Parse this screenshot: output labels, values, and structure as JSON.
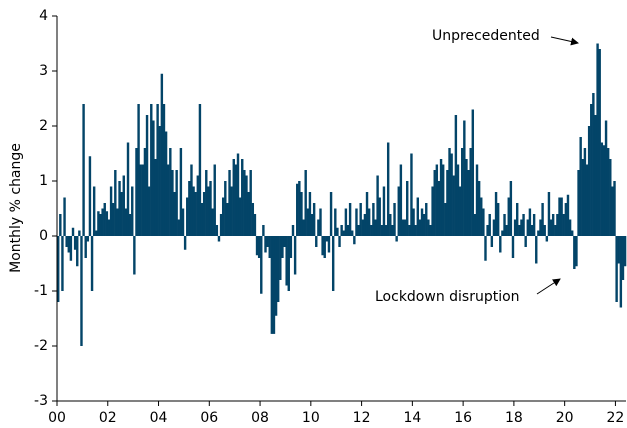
{
  "chart_data": {
    "type": "bar",
    "ylabel": "Monthly % change",
    "color": "#034468",
    "ylim": [
      -3,
      4
    ],
    "yticks": [
      -3,
      -2,
      -1,
      0,
      1,
      2,
      3,
      4
    ],
    "annotations": [
      "Unprecedented",
      "Lockdown disruption"
    ],
    "categories": [
      "00",
      null,
      null,
      null,
      null,
      null,
      null,
      null,
      null,
      null,
      null,
      null,
      null,
      null,
      null,
      null,
      null,
      null,
      null,
      null,
      null,
      null,
      null,
      null,
      "02",
      null,
      null,
      null,
      null,
      null,
      null,
      null,
      null,
      null,
      null,
      null,
      null,
      null,
      null,
      null,
      null,
      null,
      null,
      null,
      null,
      null,
      null,
      null,
      "04",
      null,
      null,
      null,
      null,
      null,
      null,
      null,
      null,
      null,
      null,
      null,
      null,
      null,
      null,
      null,
      null,
      null,
      null,
      null,
      null,
      null,
      null,
      null,
      "06",
      null,
      null,
      null,
      null,
      null,
      null,
      null,
      null,
      null,
      null,
      null,
      null,
      null,
      null,
      null,
      null,
      null,
      null,
      null,
      null,
      null,
      null,
      null,
      "08",
      null,
      null,
      null,
      null,
      null,
      null,
      null,
      null,
      null,
      null,
      null,
      null,
      null,
      null,
      null,
      null,
      null,
      null,
      null,
      null,
      null,
      null,
      null,
      "10",
      null,
      null,
      null,
      null,
      null,
      null,
      null,
      null,
      null,
      null,
      null,
      null,
      null,
      null,
      null,
      null,
      null,
      null,
      null,
      null,
      null,
      null,
      null,
      "12",
      null,
      null,
      null,
      null,
      null,
      null,
      null,
      null,
      null,
      null,
      null,
      null,
      null,
      null,
      null,
      null,
      null,
      null,
      null,
      null,
      null,
      null,
      null,
      "14",
      null,
      null,
      null,
      null,
      null,
      null,
      null,
      null,
      null,
      null,
      null,
      null,
      null,
      null,
      null,
      null,
      null,
      null,
      null,
      null,
      null,
      null,
      null,
      "16",
      null,
      null,
      null,
      null,
      null,
      null,
      null,
      null,
      null,
      null,
      null,
      null,
      null,
      null,
      null,
      null,
      null,
      null,
      null,
      null,
      null,
      null,
      null,
      "18",
      null,
      null,
      null,
      null,
      null,
      null,
      null,
      null,
      null,
      null,
      null,
      null,
      null,
      null,
      null,
      null,
      null,
      null,
      null,
      null,
      null,
      null,
      null,
      "20",
      null,
      null,
      null,
      null,
      null,
      null,
      null,
      null,
      null,
      null,
      null,
      null,
      null,
      null,
      null,
      null,
      null,
      null,
      null,
      null,
      null,
      null,
      null,
      "22",
      null,
      null,
      null,
      null
    ],
    "values": [
      -1.2,
      0.4,
      -1.0,
      0.7,
      -0.2,
      -0.3,
      -0.45,
      0.15,
      -0.25,
      -0.55,
      0.1,
      -2.0,
      2.4,
      -0.4,
      -0.1,
      1.45,
      -1.0,
      0.9,
      0.1,
      0.45,
      0.4,
      0.5,
      0.6,
      0.45,
      0.3,
      0.9,
      0.6,
      1.2,
      0.5,
      1.0,
      0.8,
      1.1,
      0.5,
      1.7,
      0.4,
      0.9,
      -0.7,
      1.6,
      2.4,
      1.3,
      1.3,
      1.6,
      2.2,
      0.9,
      2.4,
      2.1,
      1.4,
      2.4,
      2.0,
      2.95,
      2.4,
      1.9,
      1.3,
      1.6,
      1.2,
      0.8,
      1.2,
      0.3,
      1.6,
      0.5,
      -0.25,
      0.7,
      1.0,
      1.3,
      0.9,
      0.8,
      1.1,
      2.4,
      0.6,
      0.8,
      1.2,
      0.9,
      1.0,
      0.5,
      1.3,
      0.2,
      -0.1,
      0.4,
      0.7,
      1.0,
      0.6,
      1.2,
      0.9,
      1.4,
      1.3,
      1.5,
      0.7,
      1.4,
      1.2,
      1.1,
      0.8,
      1.2,
      0.6,
      0.4,
      -0.35,
      -0.4,
      -1.05,
      0.2,
      -0.3,
      -0.2,
      -0.4,
      -1.78,
      -1.78,
      -1.45,
      -1.2,
      -0.8,
      -0.4,
      -0.2,
      -0.9,
      -1.0,
      -0.4,
      0.2,
      -0.7,
      0.95,
      1.0,
      0.8,
      0.3,
      1.2,
      0.5,
      0.8,
      0.4,
      0.6,
      -0.2,
      0.3,
      0.5,
      -0.35,
      -0.4,
      -0.1,
      -0.3,
      0.8,
      -1.0,
      0.5,
      0.15,
      -0.2,
      0.2,
      0.1,
      0.5,
      0.2,
      0.6,
      0.1,
      -0.15,
      0.5,
      0.2,
      0.6,
      0.3,
      0.4,
      0.8,
      0.5,
      0.2,
      0.6,
      0.3,
      1.1,
      0.7,
      0.2,
      0.9,
      0.2,
      1.7,
      0.4,
      0.2,
      0.6,
      -0.1,
      0.9,
      1.3,
      0.3,
      0.3,
      1.0,
      0.2,
      1.5,
      0.5,
      0.2,
      0.7,
      0.3,
      0.5,
      0.4,
      0.6,
      0.3,
      0.2,
      0.9,
      1.2,
      1.3,
      1.0,
      1.4,
      1.3,
      0.6,
      1.2,
      1.6,
      1.5,
      1.1,
      2.2,
      1.3,
      0.9,
      1.6,
      2.1,
      1.4,
      1.2,
      1.6,
      2.3,
      0.4,
      1.3,
      1.0,
      0.7,
      0.5,
      -0.45,
      0.2,
      0.4,
      -0.2,
      0.3,
      0.8,
      0.6,
      -0.3,
      0.1,
      0.4,
      0.2,
      0.7,
      1.0,
      -0.4,
      0.3,
      0.6,
      0.2,
      0.3,
      0.4,
      -0.2,
      0.3,
      0.5,
      0.2,
      0.4,
      -0.5,
      0.1,
      0.3,
      0.6,
      0.2,
      -0.1,
      0.8,
      0.3,
      0.4,
      0.2,
      0.4,
      0.7,
      0.7,
      0.4,
      0.6,
      0.75,
      0.3,
      0.1,
      -0.6,
      -0.55,
      1.2,
      1.8,
      1.4,
      1.6,
      1.3,
      2.0,
      2.4,
      2.6,
      2.2,
      3.5,
      3.4,
      1.7,
      1.65,
      2.1,
      1.6,
      1.4,
      0.9,
      1.0,
      -1.2,
      -0.5,
      -1.3,
      -0.8,
      -0.55
    ]
  }
}
